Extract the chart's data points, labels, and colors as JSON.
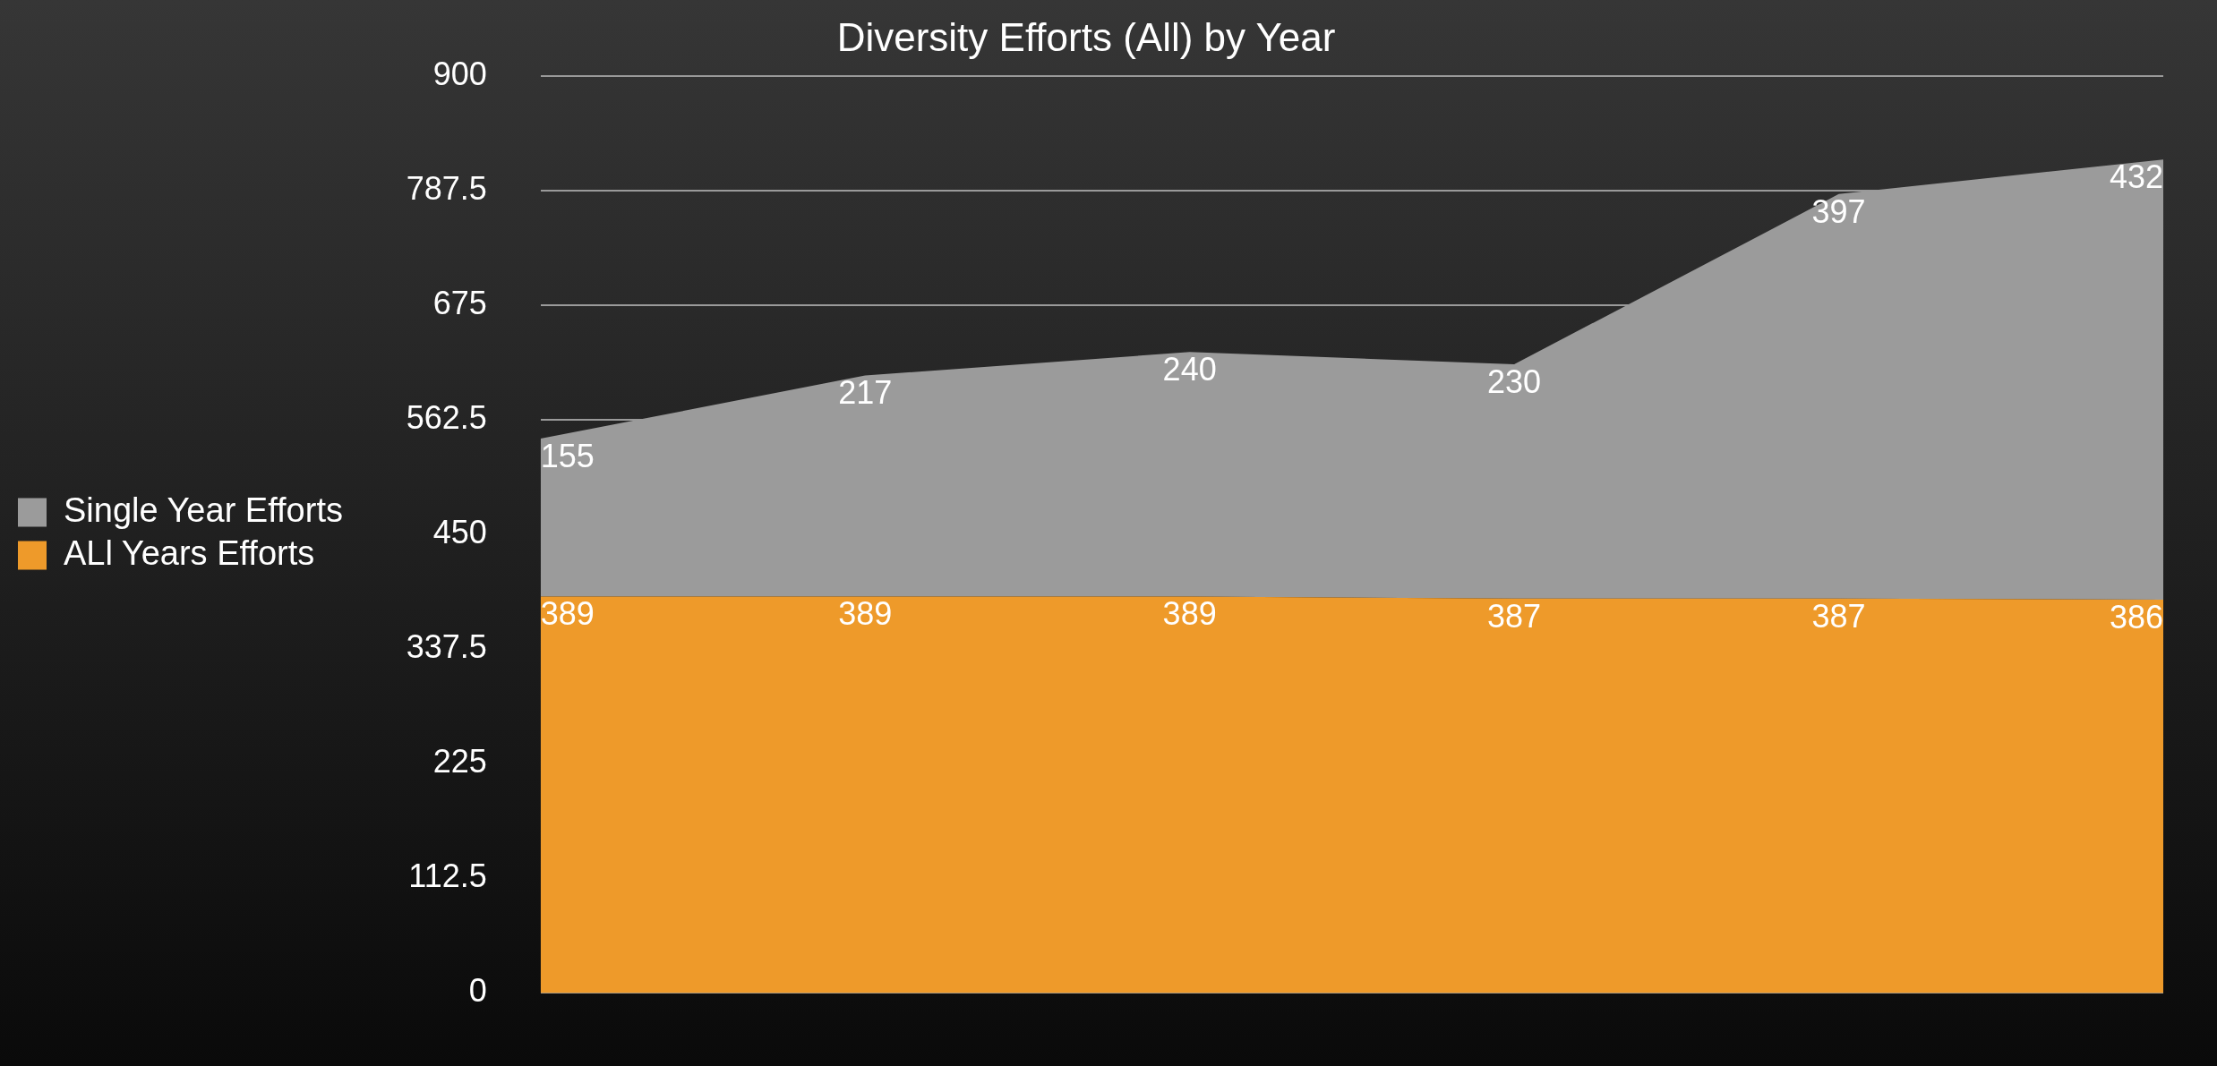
{
  "chart_data": {
    "type": "area",
    "title": "Diversity Efforts (All) by Year",
    "categories": [
      null,
      null,
      null,
      null,
      null,
      null
    ],
    "stacked": true,
    "series": [
      {
        "name": "ALl Years Efforts",
        "color": "#ee9a2a",
        "values": [
          389,
          389,
          389,
          387,
          387,
          386
        ]
      },
      {
        "name": "Single Year Efforts",
        "color": "#9b9b9b",
        "values": [
          155,
          217,
          240,
          230,
          397,
          432
        ]
      }
    ],
    "ylim": [
      0,
      900
    ],
    "yticks": [
      0,
      112.5,
      225,
      337.5,
      450,
      562.5,
      675,
      787.5,
      900
    ],
    "grid": "y",
    "legend": "left",
    "data_labels": true
  }
}
